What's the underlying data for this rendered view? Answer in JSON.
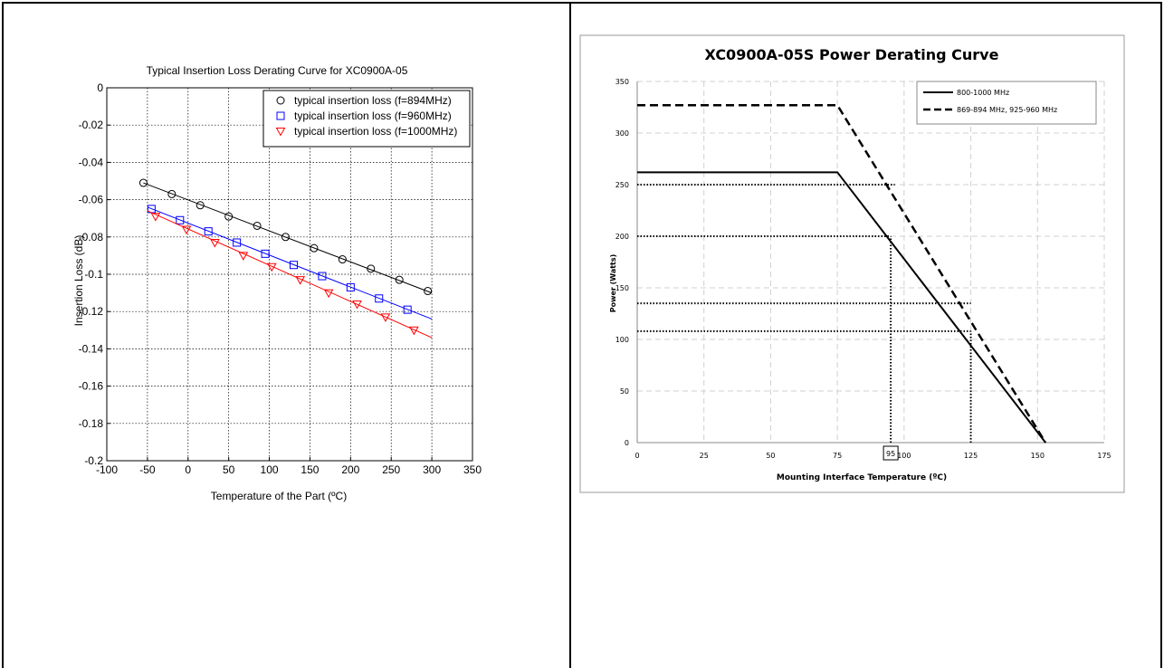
{
  "chart_data": [
    {
      "type": "scatter",
      "title": "Typical Insertion Loss Derating Curve for XC0900A-05",
      "xlabel": "Temperature of the Part (ºC)",
      "ylabel": "Insertion Loss (dB)",
      "xlim": [
        -100,
        350
      ],
      "ylim": [
        -0.2,
        0
      ],
      "xticks": [
        "-100",
        "-50",
        "0",
        "50",
        "100",
        "150",
        "200",
        "250",
        "300",
        "350"
      ],
      "yticks": [
        "0",
        "-0.02",
        "-0.04",
        "-0.06",
        "-0.08",
        "-0.1",
        "-0.12",
        "-0.14",
        "-0.16",
        "-0.18",
        "-0.2"
      ],
      "grid": true,
      "legend_position": "top-right",
      "series": [
        {
          "name": "typical insertion loss (f=894MHz)",
          "marker": "circle",
          "color": "#000000",
          "x": [
            -55,
            -20,
            15,
            50,
            85,
            120,
            155,
            190,
            225,
            260,
            295
          ],
          "y": [
            -0.051,
            -0.057,
            -0.063,
            -0.069,
            -0.074,
            -0.08,
            -0.086,
            -0.092,
            -0.097,
            -0.103,
            -0.109
          ],
          "fit": [
            [
              -55,
              -0.051
            ],
            [
              300,
              -0.11
            ]
          ]
        },
        {
          "name": "typical insertion loss (f=960MHz)",
          "marker": "square",
          "color": "#0000ff",
          "x": [
            -45,
            -10,
            25,
            60,
            95,
            130,
            165,
            200,
            235,
            270
          ],
          "y": [
            -0.065,
            -0.071,
            -0.077,
            -0.083,
            -0.089,
            -0.095,
            -0.101,
            -0.107,
            -0.113,
            -0.119
          ],
          "fit": [
            [
              -50,
              -0.064
            ],
            [
              300,
              -0.124
            ]
          ]
        },
        {
          "name": "typical insertion loss (f=1000MHz)",
          "marker": "triangle-down",
          "color": "#ff0000",
          "x": [
            -40,
            -2,
            33,
            68,
            103,
            138,
            173,
            208,
            243,
            278
          ],
          "y": [
            -0.069,
            -0.076,
            -0.083,
            -0.09,
            -0.096,
            -0.103,
            -0.11,
            -0.116,
            -0.123,
            -0.13
          ],
          "fit": [
            [
              -50,
              -0.066
            ],
            [
              300,
              -0.134
            ]
          ]
        }
      ]
    },
    {
      "type": "line",
      "title": "XC0900A-05S Power Derating Curve",
      "xlabel": "Mounting Interface Temperature (ºC)",
      "ylabel": "Power (Watts)",
      "xlim": [
        0,
        175
      ],
      "ylim": [
        0,
        350
      ],
      "xticks": [
        "0",
        "25",
        "50",
        "75",
        "100",
        "125",
        "150",
        "175"
      ],
      "yticks": [
        "0",
        "50",
        "100",
        "150",
        "200",
        "250",
        "300",
        "350"
      ],
      "grid": true,
      "legend_position": "top-right",
      "series": [
        {
          "name": "800-1000 MHz",
          "style": "solid",
          "x": [
            0,
            75,
            153
          ],
          "y": [
            262,
            262,
            0
          ]
        },
        {
          "name": "869-894 MHz, 925-960 MHz",
          "style": "dashed",
          "x": [
            0,
            75,
            153
          ],
          "y": [
            327,
            327,
            0
          ]
        }
      ],
      "annotation_lines": [
        {
          "y": 250,
          "x_to": 96.5
        },
        {
          "y": 200,
          "x_to": 95
        },
        {
          "y": 135,
          "x_to": 125
        },
        {
          "y": 108,
          "x_to": 125
        },
        {
          "x": 95,
          "y_to": 200
        },
        {
          "x": 125,
          "y_to": 108
        }
      ],
      "annotations": [
        {
          "text": "95",
          "x": 95
        }
      ]
    }
  ]
}
